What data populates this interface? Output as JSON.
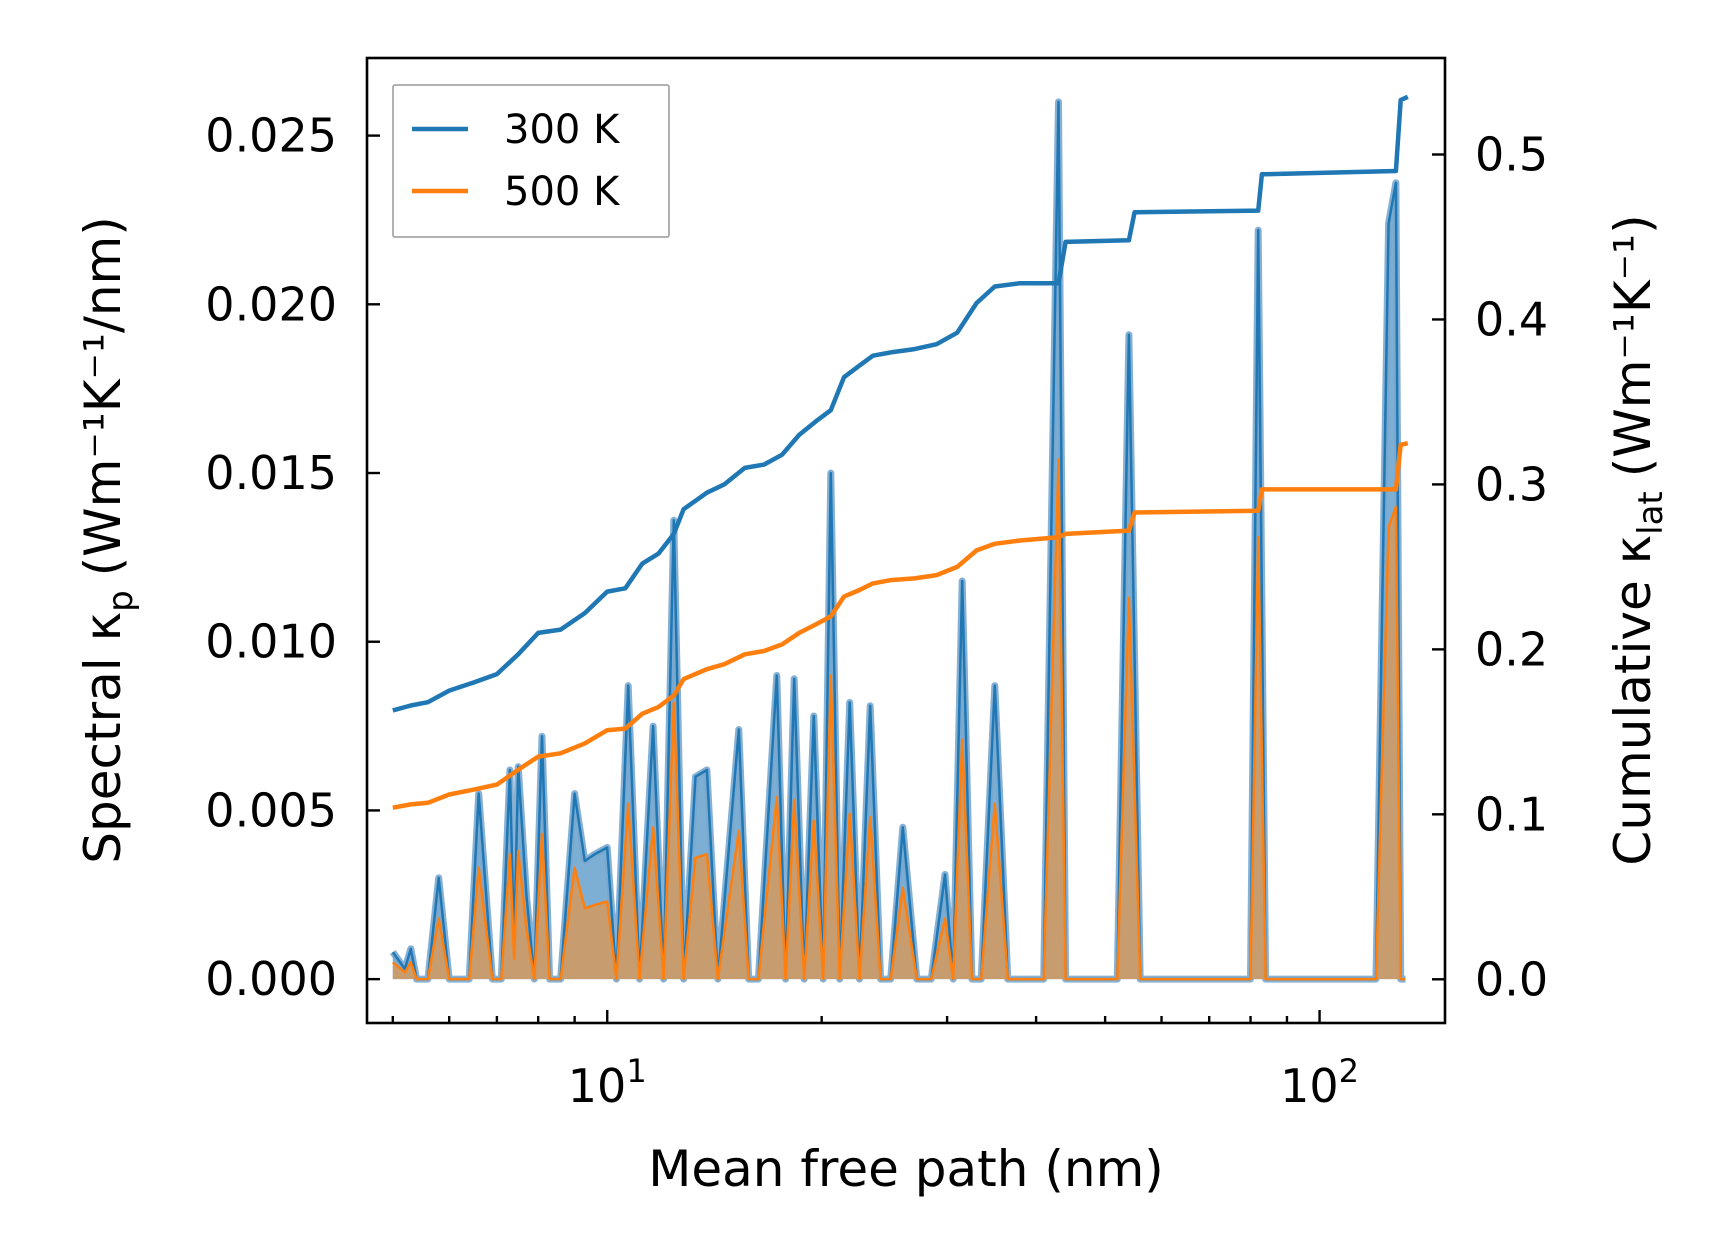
{
  "chart_data": {
    "type": "line",
    "title": "",
    "xlabel": "Mean free path (nm)",
    "ylabel_left": {
      "main": "Spectral κ",
      "sub": "p",
      "unit": "(Wm⁻¹K⁻¹/nm)"
    },
    "ylabel_right": {
      "main": "Cumulative κ",
      "sub": "lat",
      "unit": "(Wm⁻¹K⁻¹)"
    },
    "x_scale": "log",
    "xlim": [
      4.6,
      150
    ],
    "ylim_left": [
      -0.0013,
      0.0273
    ],
    "ylim_right": [
      -0.0265,
      0.5585
    ],
    "x_tick_labels": [
      {
        "base": "10",
        "exp": "1",
        "value": 10
      },
      {
        "base": "10",
        "exp": "2",
        "value": 100
      }
    ],
    "y_left_tick_labels": [
      "0.000",
      "0.005",
      "0.010",
      "0.015",
      "0.020",
      "0.025"
    ],
    "y_left_tick_values": [
      0,
      0.005,
      0.01,
      0.015,
      0.02,
      0.025
    ],
    "y_right_tick_labels": [
      "0.0",
      "0.1",
      "0.2",
      "0.3",
      "0.4",
      "0.5"
    ],
    "y_right_tick_values": [
      0,
      0.1,
      0.2,
      0.3,
      0.4,
      0.5
    ],
    "legend": {
      "position": "top-left",
      "entries": [
        {
          "label": "300 K",
          "color": "#1f77b4"
        },
        {
          "label": "500 K",
          "color": "#ff7f0e"
        }
      ]
    },
    "colors": {
      "t300": "#1f77b4",
      "t500": "#ff7f0e",
      "fill300": "#5c9bcb",
      "fill500": "#d49a5e"
    },
    "spectral_x": [
      5.0,
      5.2,
      5.3,
      5.4,
      5.6,
      5.8,
      6.0,
      6.2,
      6.4,
      6.6,
      6.9,
      7.1,
      7.3,
      7.4,
      7.5,
      7.7,
      7.9,
      8.1,
      8.3,
      8.6,
      9.0,
      9.3,
      9.6,
      10.0,
      10.3,
      10.7,
      11.1,
      11.6,
      12.0,
      12.4,
      12.8,
      13.3,
      13.8,
      14.3,
      15.3,
      15.8,
      16.3,
      17.3,
      17.8,
      18.3,
      18.9,
      19.5,
      20.1,
      20.6,
      21.2,
      21.9,
      22.6,
      23.4,
      24.2,
      25.0,
      26.0,
      27.2,
      28.5,
      29.8,
      30.6,
      31.5,
      32.5,
      33.5,
      35.0,
      36.5,
      38.0,
      41.0,
      43.0,
      44.0,
      48.0,
      52.0,
      54.0,
      56.0,
      60.0,
      70.0,
      80.0,
      82.0,
      84.0,
      90.0,
      100.0,
      120.0,
      125.0,
      128.0,
      130.0,
      132.0
    ],
    "spectral_300": [
      0.0008,
      0.0003,
      0.0009,
      0.0,
      0.0,
      0.003,
      0.0,
      0.0,
      0.0,
      0.0055,
      0.0,
      0.0,
      0.0062,
      0.001,
      0.0063,
      0.0025,
      0.0,
      0.0072,
      0.0,
      0.0,
      0.0055,
      0.0035,
      0.0037,
      0.0039,
      0.0,
      0.0087,
      0.0,
      0.0075,
      0.0,
      0.0136,
      0.0,
      0.006,
      0.0062,
      0.0,
      0.0074,
      0.0,
      0.0,
      0.009,
      0.0,
      0.0089,
      0.0,
      0.0078,
      0.0,
      0.015,
      0.0,
      0.0082,
      0.0,
      0.0081,
      0.0,
      0.0,
      0.0045,
      0.0,
      0.0,
      0.0031,
      0.0,
      0.0118,
      0.0,
      0.0,
      0.0087,
      0.0,
      0.0,
      0.0,
      0.026,
      0.0,
      0.0,
      0.0,
      0.0191,
      0.0,
      0.0,
      0.0,
      0.0,
      0.0222,
      0.0,
      0.0,
      0.0,
      0.0,
      0.0224,
      0.0236,
      0.0,
      0.0
    ],
    "spectral_500": [
      0.0005,
      0.0002,
      0.0005,
      0.0,
      0.0,
      0.0018,
      0.0,
      0.0,
      0.0,
      0.0033,
      0.0,
      0.0,
      0.0037,
      0.0006,
      0.0038,
      0.0015,
      0.0,
      0.0043,
      0.0,
      0.0,
      0.0033,
      0.0021,
      0.0022,
      0.0023,
      0.0,
      0.0052,
      0.0,
      0.0045,
      0.0,
      0.0082,
      0.0,
      0.0036,
      0.0037,
      0.0,
      0.0044,
      0.0,
      0.0,
      0.0054,
      0.0,
      0.0053,
      0.0,
      0.0047,
      0.0,
      0.009,
      0.0,
      0.0049,
      0.0,
      0.0048,
      0.0,
      0.0,
      0.0027,
      0.0,
      0.0,
      0.0018,
      0.0,
      0.0071,
      0.0,
      0.0,
      0.0052,
      0.0,
      0.0,
      0.0,
      0.0154,
      0.0,
      0.0,
      0.0,
      0.0113,
      0.0,
      0.0,
      0.0,
      0.0,
      0.0131,
      0.0,
      0.0,
      0.0,
      0.0,
      0.0134,
      0.014,
      0.0,
      0.0
    ],
    "cumulative_300": {
      "x": [
        5.0,
        5.3,
        5.6,
        6.0,
        6.5,
        7.0,
        7.5,
        8.0,
        8.6,
        9.3,
        10.0,
        10.6,
        11.2,
        11.8,
        12.4,
        12.8,
        13.8,
        14.6,
        15.6,
        16.6,
        17.6,
        18.6,
        19.6,
        20.6,
        21.5,
        22.6,
        23.6,
        25.0,
        27.0,
        29.0,
        31.0,
        33.0,
        35.0,
        38.0,
        43.0,
        44.0,
        54.0,
        55.0,
        82.0,
        83.0,
        128.0,
        130.0,
        133.0
      ],
      "y": [
        0.163,
        0.166,
        0.168,
        0.175,
        0.18,
        0.185,
        0.197,
        0.21,
        0.212,
        0.222,
        0.235,
        0.237,
        0.252,
        0.258,
        0.27,
        0.285,
        0.295,
        0.3,
        0.31,
        0.312,
        0.318,
        0.33,
        0.338,
        0.345,
        0.365,
        0.372,
        0.378,
        0.38,
        0.382,
        0.385,
        0.392,
        0.41,
        0.42,
        0.422,
        0.422,
        0.447,
        0.448,
        0.465,
        0.466,
        0.488,
        0.49,
        0.533,
        0.535
      ]
    },
    "cumulative_500": {
      "x": [
        5.0,
        5.3,
        5.6,
        6.0,
        6.5,
        7.0,
        7.5,
        8.0,
        8.6,
        9.3,
        10.0,
        10.6,
        11.2,
        11.8,
        12.4,
        12.8,
        13.8,
        14.6,
        15.6,
        16.6,
        17.6,
        18.6,
        19.6,
        20.6,
        21.5,
        22.6,
        23.6,
        25.0,
        27.0,
        29.0,
        31.0,
        33.0,
        35.0,
        38.0,
        43.0,
        44.0,
        54.0,
        55.0,
        82.0,
        83.0,
        128.0,
        130.0,
        133.0
      ],
      "y": [
        0.104,
        0.106,
        0.107,
        0.112,
        0.115,
        0.118,
        0.127,
        0.135,
        0.137,
        0.143,
        0.151,
        0.152,
        0.161,
        0.165,
        0.172,
        0.182,
        0.188,
        0.191,
        0.197,
        0.199,
        0.203,
        0.21,
        0.215,
        0.22,
        0.232,
        0.236,
        0.24,
        0.242,
        0.243,
        0.245,
        0.25,
        0.26,
        0.264,
        0.266,
        0.268,
        0.27,
        0.272,
        0.283,
        0.284,
        0.297,
        0.297,
        0.324,
        0.325
      ]
    }
  }
}
